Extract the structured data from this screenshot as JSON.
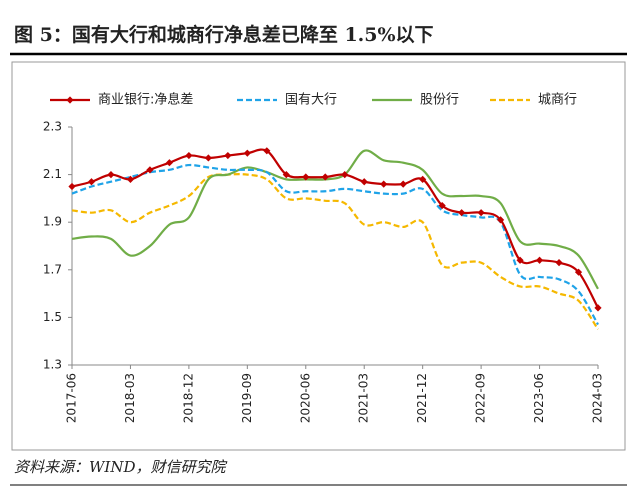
{
  "chart_data": {
    "type": "line",
    "title": "图 5：国有大行和城商行净息差已降至 1.5%以下",
    "source": "资料来源：WIND，财信研究院",
    "categories": [
      "2017-06",
      null,
      null,
      "2018-03",
      null,
      null,
      "2018-12",
      null,
      null,
      "2019-09",
      null,
      null,
      "2020-06",
      null,
      null,
      "2021-03",
      null,
      null,
      "2021-12",
      null,
      null,
      "2022-09",
      null,
      null,
      "2023-06",
      null,
      null,
      "2024-03"
    ],
    "series": [
      {
        "name": "商业银行:净息差",
        "color": "#c00000",
        "marker": "diamond",
        "dashed": false,
        "values": [
          2.05,
          2.07,
          2.1,
          2.08,
          2.12,
          2.15,
          2.18,
          2.17,
          2.18,
          2.19,
          2.2,
          2.1,
          2.09,
          2.09,
          2.1,
          2.07,
          2.06,
          2.06,
          2.08,
          1.97,
          1.94,
          1.94,
          1.91,
          1.74,
          1.74,
          1.73,
          1.69,
          1.54
        ]
      },
      {
        "name": "国有大行",
        "color": "#1fa3e8",
        "dashed": true,
        "values": [
          2.02,
          2.05,
          2.07,
          2.09,
          2.11,
          2.12,
          2.14,
          2.13,
          2.12,
          2.12,
          2.11,
          2.03,
          2.03,
          2.03,
          2.04,
          2.03,
          2.02,
          2.02,
          2.04,
          1.95,
          1.93,
          1.92,
          1.9,
          1.68,
          1.67,
          1.66,
          1.61,
          1.47
        ]
      },
      {
        "name": "股份行",
        "color": "#70ad47",
        "dashed": false,
        "values": [
          1.83,
          1.84,
          1.83,
          1.76,
          1.8,
          1.89,
          1.92,
          2.08,
          2.1,
          2.13,
          2.11,
          2.08,
          2.08,
          2.08,
          2.1,
          2.2,
          2.16,
          2.15,
          2.12,
          2.02,
          2.01,
          2.01,
          1.98,
          1.82,
          1.81,
          1.8,
          1.76,
          1.62
        ]
      },
      {
        "name": "城商行",
        "color": "#f5b800",
        "dashed": true,
        "values": [
          1.95,
          1.94,
          1.95,
          1.9,
          1.94,
          1.97,
          2.01,
          2.09,
          2.1,
          2.1,
          2.08,
          2.0,
          2.0,
          1.99,
          1.98,
          1.89,
          1.9,
          1.88,
          1.9,
          1.72,
          1.73,
          1.73,
          1.67,
          1.63,
          1.63,
          1.6,
          1.57,
          1.45
        ]
      }
    ],
    "ylim": [
      1.3,
      2.3
    ],
    "yticks": [
      2.3,
      2.1,
      1.9,
      1.7,
      1.5,
      1.3
    ],
    "grid": false,
    "legend": "top"
  }
}
